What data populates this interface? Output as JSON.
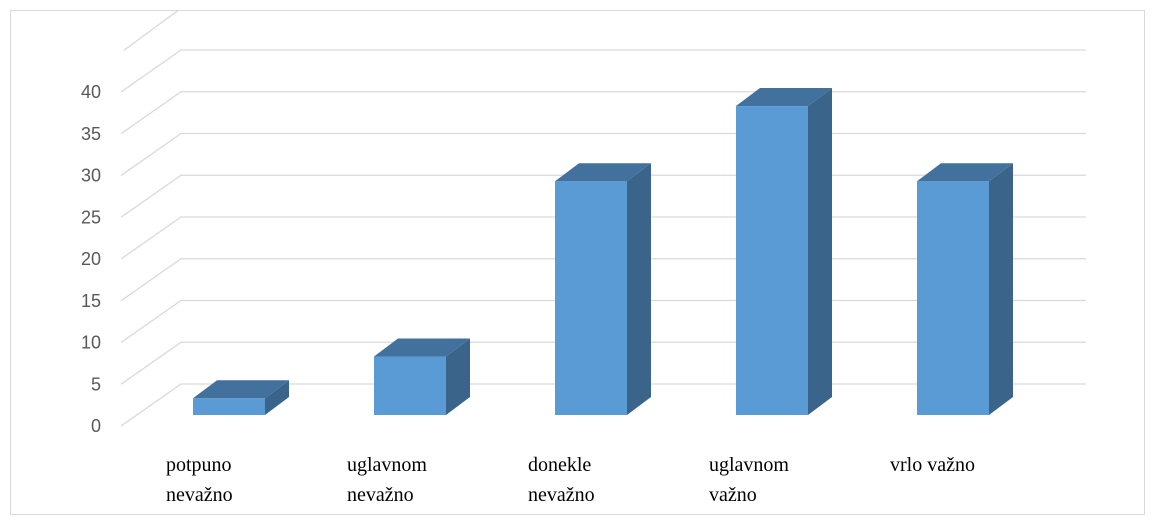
{
  "chart_data": {
    "type": "bar",
    "style": "3d-column",
    "categories": [
      [
        "potpuno",
        "nevažno"
      ],
      [
        "uglavnom",
        "nevažno"
      ],
      [
        "donekle",
        "nevažno"
      ],
      [
        "uglavnom",
        "važno"
      ],
      [
        "vrlo važno"
      ]
    ],
    "values": [
      2,
      7,
      28,
      37,
      28
    ],
    "ylim": [
      0,
      40
    ],
    "yticks": [
      "0",
      "5",
      "10",
      "15",
      "20",
      "25",
      "30",
      "35",
      "40"
    ],
    "grid": true,
    "legend": "none",
    "colors": {
      "bar_front": "#5B9BD5",
      "bar_side": "#3A6489",
      "bar_top": "#41719C",
      "gridline": "#d9d9d9",
      "tick_text": "#595959"
    }
  }
}
